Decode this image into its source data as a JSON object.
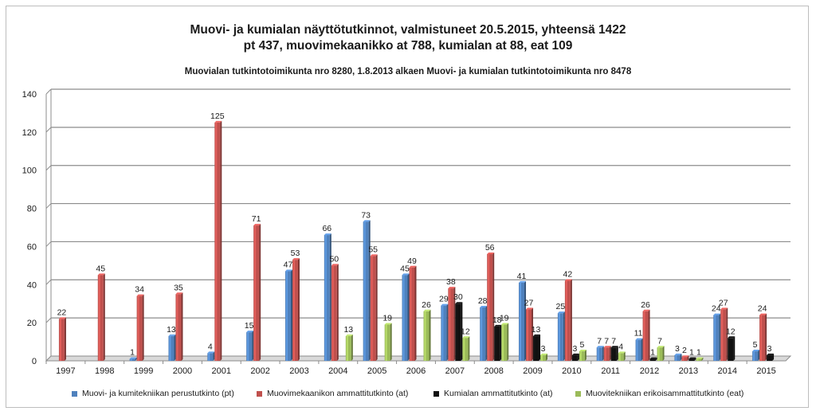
{
  "chart_data": {
    "type": "bar",
    "title_lines": [
      "Muovi- ja kumialan näyttötutkinnot, valmistuneet 20.5.2015, yhteensä 1422",
      "pt 437, muovimekaanikko at 788, kumialan at 88, eat 109"
    ],
    "subtitle": "Muovialan tutkintotoimikunta nro 8280, 1.8.2013 alkaen Muovi- ja kumialan tutkintotoimikunta nro 8478",
    "xlabel": "",
    "ylabel": "",
    "ylim": [
      0,
      140
    ],
    "yticks": [
      0,
      20,
      40,
      60,
      80,
      100,
      120,
      140
    ],
    "grid": true,
    "legend_position": "bottom",
    "categories": [
      "1997",
      "1998",
      "1999",
      "2000",
      "2001",
      "2002",
      "2003",
      "2004",
      "2005",
      "2006",
      "2007",
      "2008",
      "2009",
      "2010",
      "2011",
      "2012",
      "2013",
      "2014",
      "2015"
    ],
    "series": [
      {
        "name": "Muovi- ja kumitekniikan perustutkinto (pt)",
        "color": "#4f81bd",
        "values": [
          null,
          null,
          1,
          13,
          4,
          15,
          47,
          66,
          73,
          45,
          29,
          28,
          41,
          25,
          7,
          11,
          3,
          24,
          5
        ]
      },
      {
        "name": "Muovimekaanikon ammattitutkinto (at)",
        "color": "#c0504d",
        "values": [
          22,
          45,
          34,
          35,
          125,
          71,
          53,
          50,
          55,
          49,
          38,
          56,
          27,
          42,
          7,
          26,
          2,
          27,
          24
        ]
      },
      {
        "name": "Kumialan ammattitutkinto (at)",
        "color": "#111111",
        "values": [
          null,
          null,
          null,
          null,
          null,
          null,
          null,
          null,
          null,
          null,
          30,
          18,
          13,
          3,
          7,
          1,
          1,
          12,
          3
        ]
      },
      {
        "name": "Muovitekniikan erikoisammattitutkinto (eat)",
        "color": "#9bbb59",
        "values": [
          null,
          null,
          null,
          null,
          null,
          null,
          null,
          13,
          19,
          26,
          12,
          19,
          3,
          5,
          4,
          7,
          1,
          null,
          null
        ]
      }
    ]
  }
}
